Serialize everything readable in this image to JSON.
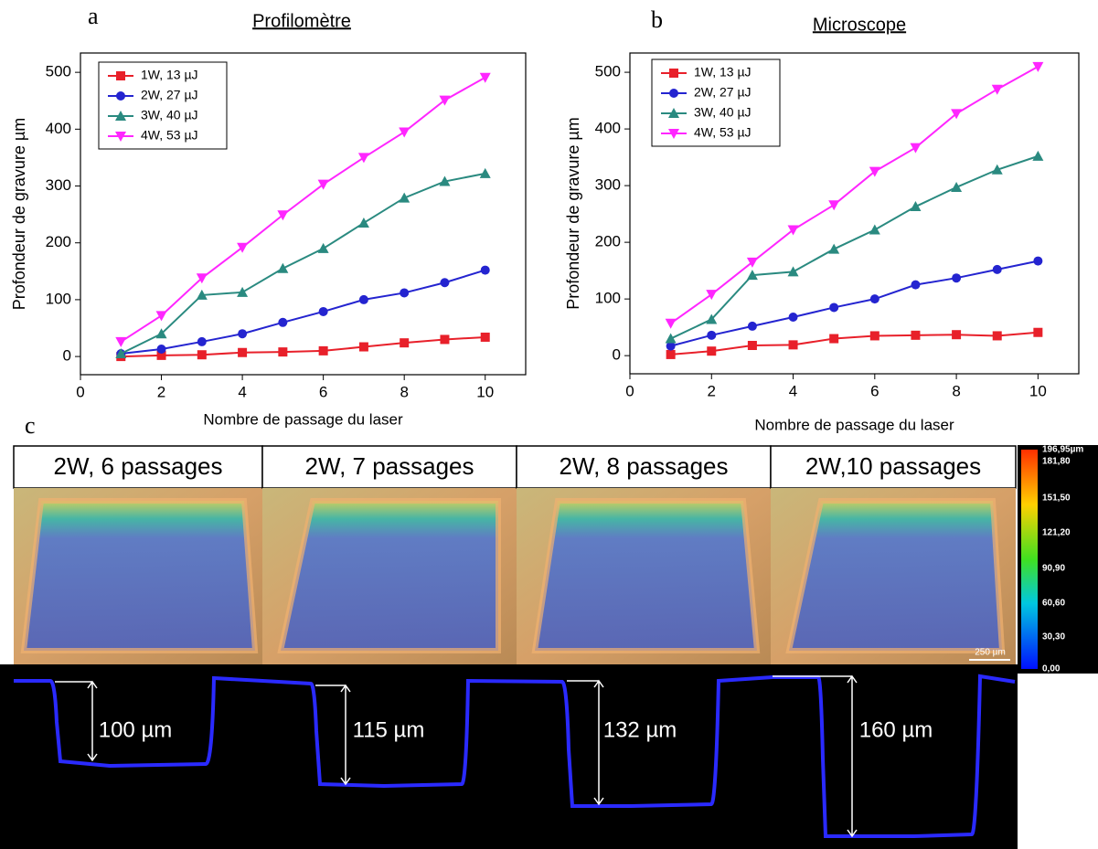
{
  "chart_data": [
    {
      "type": "line",
      "label": "a",
      "title": "Profilomètre",
      "x_label": "Nombre de passage du laser",
      "y_label": "Profondeur de gravure µm",
      "x": [
        1,
        2,
        3,
        4,
        5,
        6,
        7,
        8,
        9,
        10
      ],
      "xlim": [
        0,
        11
      ],
      "xticks": [
        0,
        2,
        4,
        6,
        8,
        10
      ],
      "ylim": [
        -32,
        534
      ],
      "yticks": [
        0,
        100,
        200,
        300,
        400,
        500
      ],
      "legend": "upper-left",
      "series": [
        {
          "name": "1W, 13 µJ",
          "color": "#e8202a",
          "marker": "square",
          "values": [
            0,
            2,
            3,
            7,
            8,
            10,
            17,
            24,
            30,
            34
          ]
        },
        {
          "name": "2W, 27 µJ",
          "color": "#2424d0",
          "marker": "circle",
          "values": [
            5,
            13,
            26,
            40,
            60,
            79,
            100,
            112,
            130,
            152
          ]
        },
        {
          "name": "3W, 40 µJ",
          "color": "#2a8a80",
          "marker": "triangle-up",
          "values": [
            5,
            40,
            108,
            113,
            155,
            190,
            235,
            279,
            308,
            322
          ]
        },
        {
          "name": "4W, 53 µJ",
          "color": "#ff26ff",
          "marker": "triangle-down",
          "values": [
            26,
            72,
            138,
            192,
            249,
            303,
            350,
            395,
            451,
            491
          ]
        }
      ]
    },
    {
      "type": "line",
      "label": "b",
      "title": "Microscope",
      "x_label": "Nombre de passage du laser",
      "y_label": "Profondeur de gravure µm",
      "x": [
        1,
        2,
        3,
        4,
        5,
        6,
        7,
        8,
        9,
        10
      ],
      "xlim": [
        0,
        11
      ],
      "xticks": [
        0,
        2,
        4,
        6,
        8,
        10
      ],
      "ylim": [
        -32,
        534
      ],
      "yticks": [
        0,
        100,
        200,
        300,
        400,
        500
      ],
      "legend": "upper-left",
      "series": [
        {
          "name": "1W, 13 µJ",
          "color": "#e8202a",
          "marker": "square",
          "values": [
            2,
            8,
            18,
            19,
            30,
            35,
            36,
            37,
            35,
            41
          ]
        },
        {
          "name": "2W, 27 µJ",
          "color": "#2424d0",
          "marker": "circle",
          "values": [
            17,
            36,
            52,
            68,
            85,
            100,
            125,
            137,
            152,
            167
          ]
        },
        {
          "name": "3W, 40 µJ",
          "color": "#2a8a80",
          "marker": "triangle-up",
          "values": [
            30,
            64,
            142,
            148,
            188,
            222,
            263,
            297,
            328,
            352
          ]
        },
        {
          "name": "4W, 53 µJ",
          "color": "#ff26ff",
          "marker": "triangle-down",
          "values": [
            57,
            108,
            165,
            222,
            266,
            325,
            367,
            427,
            470,
            510
          ]
        }
      ]
    }
  ],
  "panel_c": {
    "label": "c",
    "images": [
      {
        "caption": "2W, 6 passages",
        "depth": "100 µm"
      },
      {
        "caption": "2W, 7 passages",
        "depth": "115 µm"
      },
      {
        "caption": "2W, 8 passages",
        "depth": "132 µm"
      },
      {
        "caption": "2W,10 passages",
        "depth": "160 µm"
      }
    ],
    "colorbar": [
      "196,95µm",
      "181,80",
      "151,50",
      "121,20",
      "90,90",
      "60,60",
      "30,30",
      "0,00"
    ],
    "scale_bar": "250 µm"
  }
}
